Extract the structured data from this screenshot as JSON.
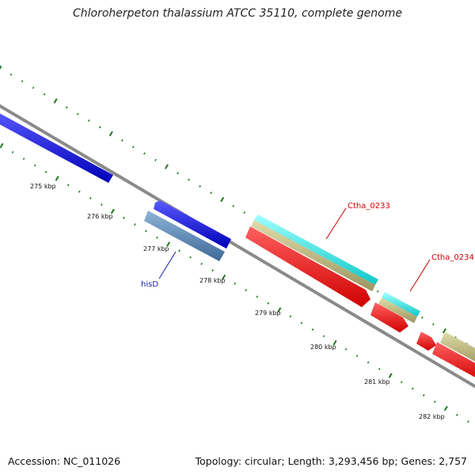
{
  "title": "Chloroherpeton thalassium ATCC 35110, complete genome",
  "footer": {
    "accession": "Accession: NC_011026",
    "topology": "Topology: circular; Length: 3,293,456 bp; Genes: 2,757"
  },
  "scale_labels": [
    "275 kbp",
    "276 kbp",
    "277 kbp",
    "278 kbp",
    "279 kbp",
    "280 kbp",
    "281 kbp",
    "282 kbp"
  ],
  "gene_labels": [
    {
      "text": "Ctha_0233",
      "color": "#cc0000"
    },
    {
      "text": "Ctha_0234",
      "color": "#cc0000"
    },
    {
      "text": "hisD",
      "color": "#1a1aaa"
    }
  ],
  "colors": {
    "backbone": "#8a8a8a",
    "ticks": "#1e7a1e",
    "forward_cds": "#1010ee",
    "his_gene": "#4f7fb0",
    "reverse_cds": "#ff1010",
    "cyan_feature": "#22eeee",
    "khaki_feature": "#bdb77e"
  }
}
